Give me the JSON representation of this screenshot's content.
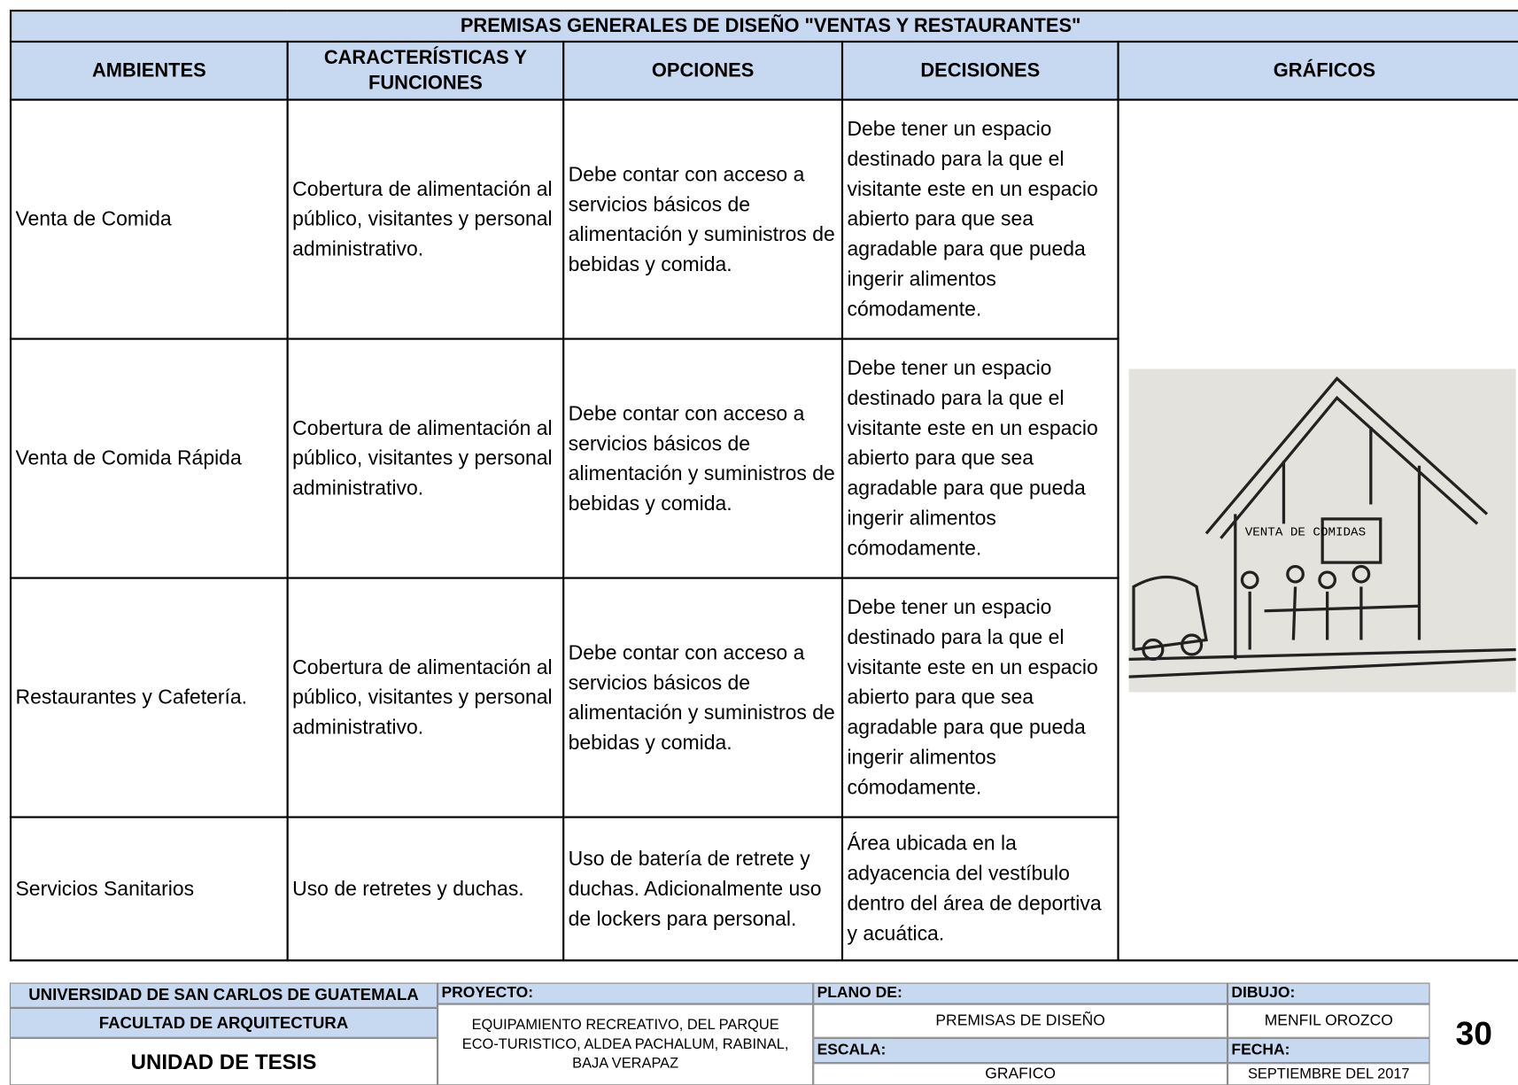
{
  "header": {
    "title": "PREMISAS GENERALES DE DISEÑO \"VENTAS Y RESTAURANTES\""
  },
  "table": {
    "columns": [
      "AMBIENTES",
      "CARACTERÍSTICAS Y FUNCIONES",
      "OPCIONES",
      "DECISIONES",
      "GRÁFICOS"
    ],
    "rows": [
      [
        "Venta de Comida",
        "Cobertura de alimentación al público, visitantes y personal administrativo.",
        "Debe contar con acceso a servicios básicos de alimentación y suministros de bebidas y comida.",
        "Debe tener un espacio destinado para la que el visitante este en un espacio abierto para que sea agradable para que pueda ingerir alimentos cómodamente."
      ],
      [
        "Venta de Comida Rápida",
        "Cobertura de alimentación al público, visitantes y personal administrativo.",
        "Debe contar con acceso a servicios básicos de alimentación y suministros de bebidas y comida.",
        "Debe tener un espacio destinado para la que el visitante este en un espacio abierto para que sea agradable para que pueda ingerir alimentos cómodamente."
      ],
      [
        "Restaurantes y Cafetería.",
        "Cobertura de alimentación al público, visitantes y personal administrativo.",
        "Debe contar con acceso a servicios básicos de alimentación y suministros de bebidas y comida.",
        "Debe tener un espacio destinado para la que el visitante este en un espacio abierto para que sea agradable para que pueda ingerir alimentos cómodamente."
      ],
      [
        "Servicios Sanitarios",
        "Uso de retretes y duchas.",
        "Uso de batería de retrete y duchas. Adicionalmente uso de lockers para personal.",
        "Área ubicada en la adyacencia del vestíbulo dentro del área de deportiva y acuática."
      ]
    ]
  },
  "graphic": {
    "label": "VENTA DE COMIDAS"
  },
  "footer": {
    "university": "UNIVERSIDAD DE SAN CARLOS DE GUATEMALA",
    "faculty": "FACULTAD DE ARQUITECTURA",
    "unit": "UNIDAD DE TESIS",
    "project_label": "PROYECTO:",
    "project_value": "EQUIPAMIENTO RECREATIVO, DEL PARQUE ECO-TURISTICO, ALDEA PACHALUM, RABINAL, BAJA VERAPAZ",
    "plan_label": "PLANO DE:",
    "plan_value": "PREMISAS DE DISEÑO",
    "scale_label": "ESCALA:",
    "scale_value": "GRAFICO",
    "drawing_label": "DIBUJO:",
    "drawing_value": "MENFIL OROZCO",
    "date_label": "FECHA:",
    "date_value": "SEPTIEMBRE DEL 2017",
    "page": "30"
  }
}
